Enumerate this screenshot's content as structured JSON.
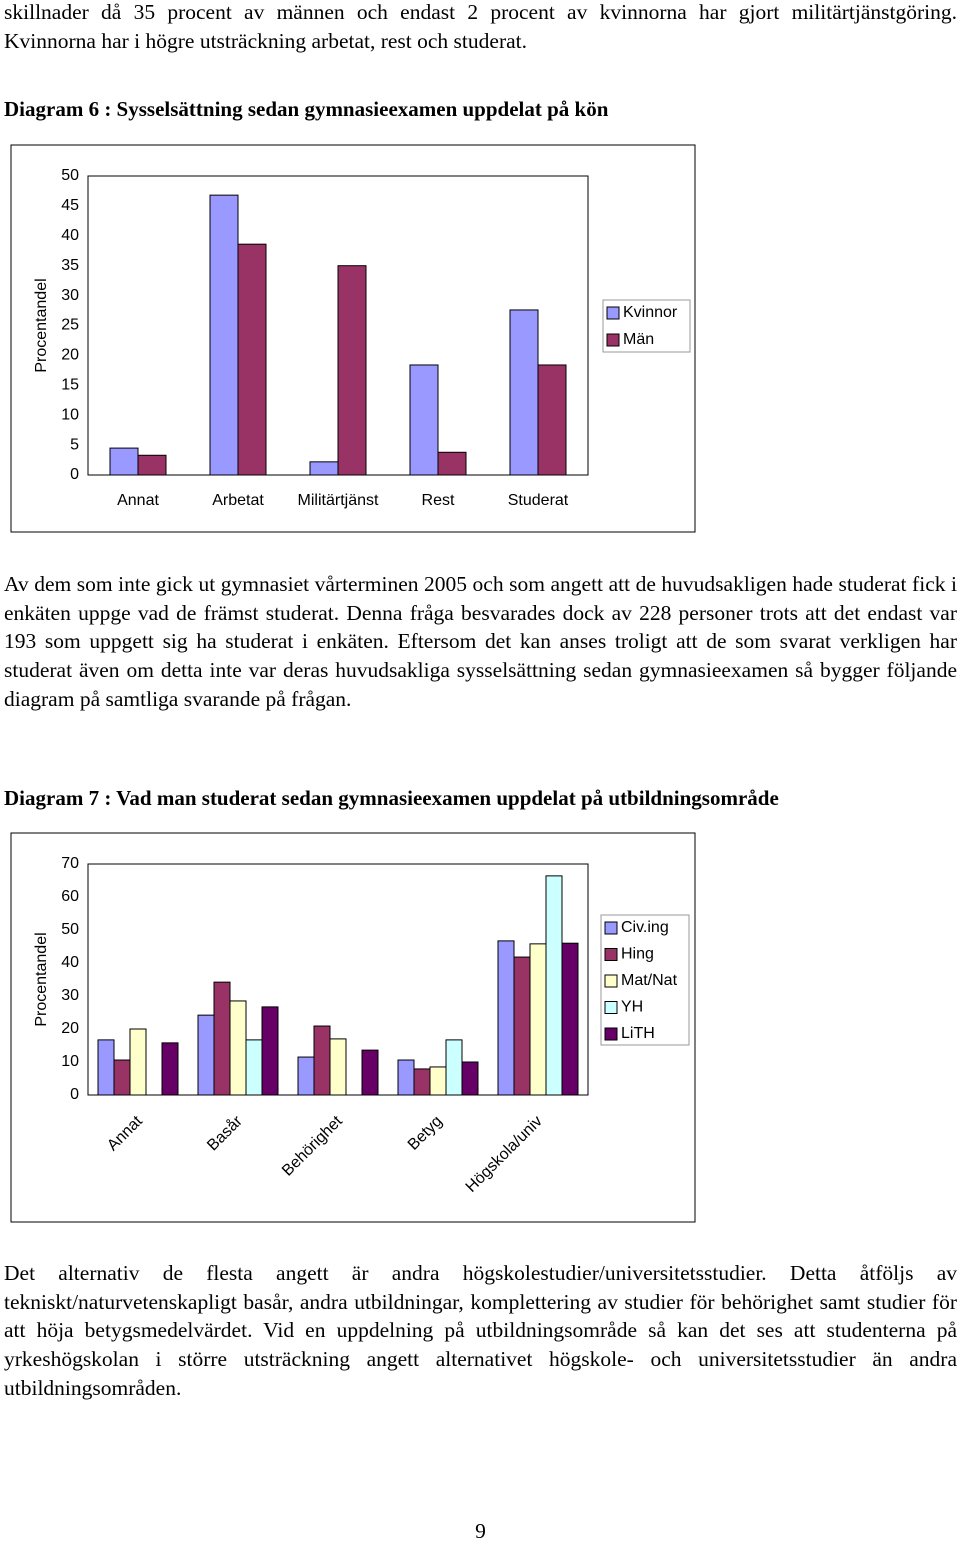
{
  "paragraphs": [
    "skillnader då 35 procent av männen och endast 2 procent av kvinnorna har gjort militärtjänstgöring. Kvinnorna har i högre utsträckning arbetat, rest och studerat.",
    "Av dem som inte gick ut gymnasiet vårterminen 2005 och som angett att de huvudsakligen hade studerat fick i enkäten uppge vad de främst studerat. Denna fråga besvarades dock av 228 personer trots att det endast var 193 som uppgett sig ha studerat i enkäten. Eftersom det kan anses troligt att de som svarat verkligen har studerat även om detta inte var deras huvudsakliga sysselsättning sedan gymnasieexamen så bygger följande diagram på samtliga svarande på frågan.",
    "Det alternativ de flesta angett är andra högskolestudier/universitetsstudier. Detta åtföljs av tekniskt/naturvetenskapligt basår, andra utbildningar, komplettering av studier för behörighet samt studier för att höja betygsmedelvärdet. Vid en uppdelning på utbildningsområde så kan det ses att studenterna på yrkeshögskolan i större utsträckning angett alternativet högskole- och universitetsstudier än andra utbildningsområden."
  ],
  "page_number": "9",
  "chart_data": [
    {
      "type": "bar",
      "title": "Diagram 6 : Sysselsättning sedan gymnasieexamen uppdelat på kön",
      "y_label": "Procentandel",
      "categories": [
        "Annat",
        "Arbetat",
        "Militärtjänst",
        "Rest",
        "Studerat"
      ],
      "series": [
        {
          "name": "Kvinnor",
          "color": "#9999ff",
          "values": [
            4.5,
            46.8,
            2.2,
            18.4,
            27.6
          ]
        },
        {
          "name": "Män",
          "color": "#993366",
          "values": [
            3.3,
            38.6,
            35,
            3.8,
            18.4
          ]
        }
      ],
      "ylim": [
        0,
        50
      ],
      "yticks": [
        0,
        5,
        10,
        15,
        20,
        25,
        30,
        35,
        40,
        45,
        50
      ],
      "grid": false,
      "legend": "right",
      "xtick_rotation": 0
    },
    {
      "type": "bar",
      "title": "Diagram 7 : Vad man studerat sedan gymnasieexamen uppdelat på utbildningsområde",
      "y_label": "Procentandel",
      "categories": [
        "Annat",
        "Basår",
        "Behörighet",
        "Betyg",
        "Högskola/univ"
      ],
      "series": [
        {
          "name": "Civ.ing",
          "color": "#9999ff",
          "values": [
            16.7,
            24.2,
            11.5,
            10.6,
            46.7
          ]
        },
        {
          "name": "Hing",
          "color": "#993366",
          "values": [
            10.6,
            34.2,
            20.9,
            7.9,
            41.8
          ]
        },
        {
          "name": "Mat/Nat",
          "color": "#ffffcc",
          "values": [
            20,
            28.5,
            17,
            8.5,
            45.8
          ]
        },
        {
          "name": "YH",
          "color": "#ccffff",
          "values": [
            0,
            16.7,
            0,
            16.7,
            66.4
          ]
        },
        {
          "name": "LiTH",
          "color": "#660066",
          "values": [
            15.8,
            26.7,
            13.6,
            10,
            46
          ]
        }
      ],
      "ylim": [
        0,
        70
      ],
      "yticks": [
        0,
        10,
        20,
        30,
        40,
        50,
        60,
        70
      ],
      "grid": false,
      "legend": "right",
      "xtick_rotation": -45
    }
  ]
}
